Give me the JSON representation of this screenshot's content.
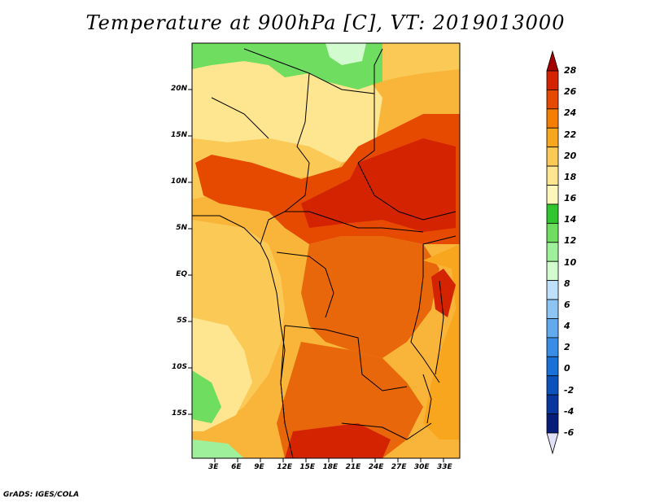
{
  "title": "Temperature at 900hPa [C], VT: 2019013000",
  "credit": "GrADS: IGES/COLA",
  "lat_labels": [
    "20N",
    "15N",
    "10N",
    "5N",
    "EQ",
    "5S",
    "10S",
    "15S"
  ],
  "lon_labels": [
    "3E",
    "6E",
    "9E",
    "12E",
    "15E",
    "18E",
    "21E",
    "24E",
    "27E",
    "30E",
    "33E"
  ],
  "colorbar": {
    "labels": [
      "28",
      "26",
      "24",
      "22",
      "20",
      "18",
      "16",
      "14",
      "12",
      "10",
      "8",
      "6",
      "4",
      "2",
      "0",
      "-2",
      "-4",
      "-6"
    ],
    "colors": [
      "#a50000",
      "#d42300",
      "#e64a00",
      "#f57e00",
      "#f9a61f",
      "#fbc955",
      "#fde68f",
      "#fdf6bb",
      "#31c630",
      "#6fdd5f",
      "#9ff09a",
      "#d3fbd0",
      "#bee0fa",
      "#8cc4f4",
      "#62a9ee",
      "#3a8de6",
      "#1870d8",
      "#0c52bd",
      "#08359e",
      "#061e78",
      "#e0e0f6"
    ]
  },
  "colors": {
    "hot": "#d42300",
    "warm": "#f08c18",
    "mild": "#fbc955",
    "cool": "#fde68f",
    "green": "#6fdd5f",
    "lightgreen": "#9ff09a",
    "border": "#000000"
  }
}
